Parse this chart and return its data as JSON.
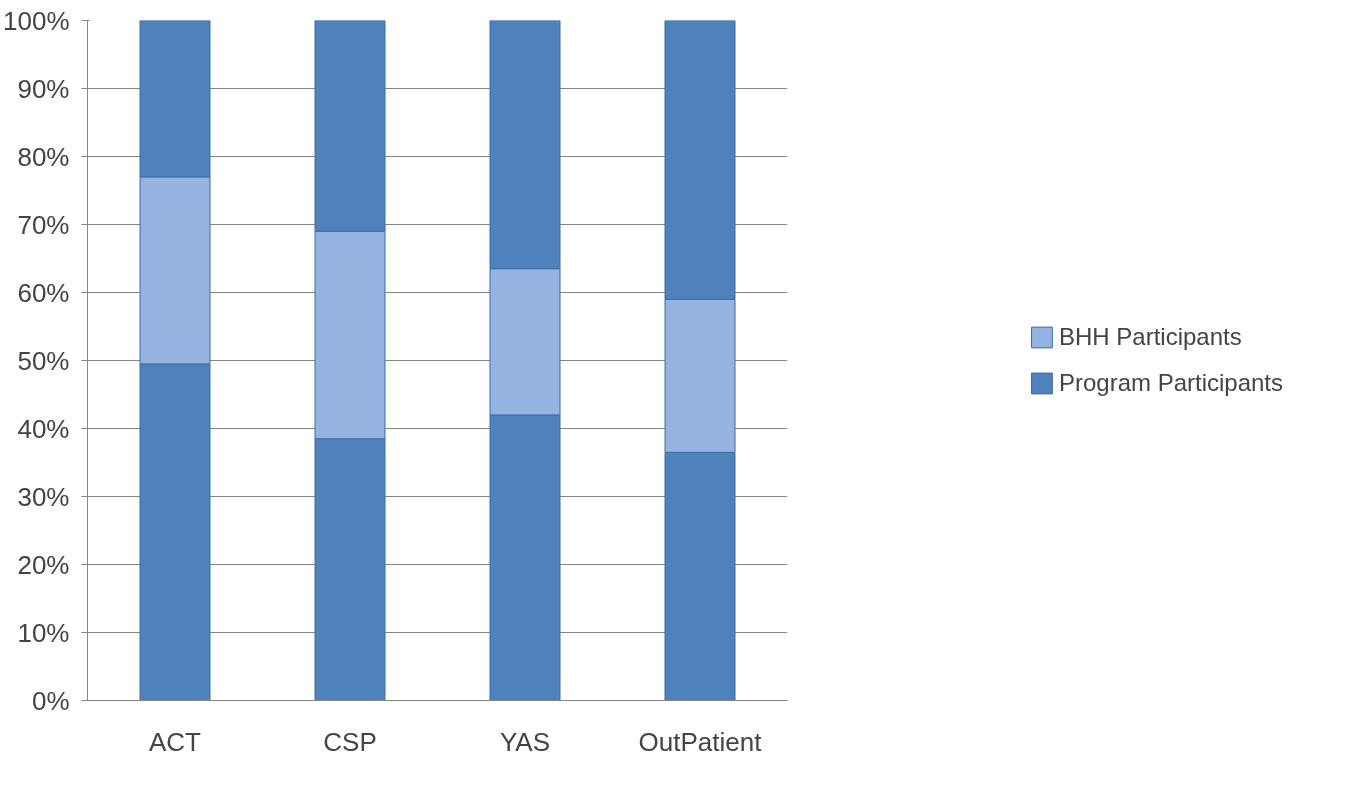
{
  "chart_data": {
    "type": "bar",
    "stacked": true,
    "categories": [
      "ACT",
      "CSP",
      "YAS",
      "OutPatient"
    ],
    "series": [
      {
        "name": "Program Participants",
        "color": "#4f81bd",
        "values": [
          49.5,
          38.5,
          42,
          36.5
        ]
      },
      {
        "name": "BHH Participants",
        "color": "#95b3e0",
        "values": [
          27.5,
          30.5,
          21.5,
          22.5
        ]
      },
      {
        "color": "#4f81bd",
        "values": [
          23,
          31,
          36.5,
          41
        ]
      }
    ],
    "ylim": [
      0,
      100
    ],
    "yticks": [
      {
        "value": 0,
        "label": "0%"
      },
      {
        "value": 10,
        "label": "10%"
      },
      {
        "value": 20,
        "label": "20%"
      },
      {
        "value": 30,
        "label": "30%"
      },
      {
        "value": 40,
        "label": "40%"
      },
      {
        "value": 50,
        "label": "50%"
      },
      {
        "value": 60,
        "label": "60%"
      },
      {
        "value": 70,
        "label": "70%"
      },
      {
        "value": 80,
        "label": "80%"
      },
      {
        "value": 90,
        "label": "90%"
      },
      {
        "value": 100,
        "label": "100%"
      }
    ],
    "grid": "y",
    "legend": "right"
  }
}
